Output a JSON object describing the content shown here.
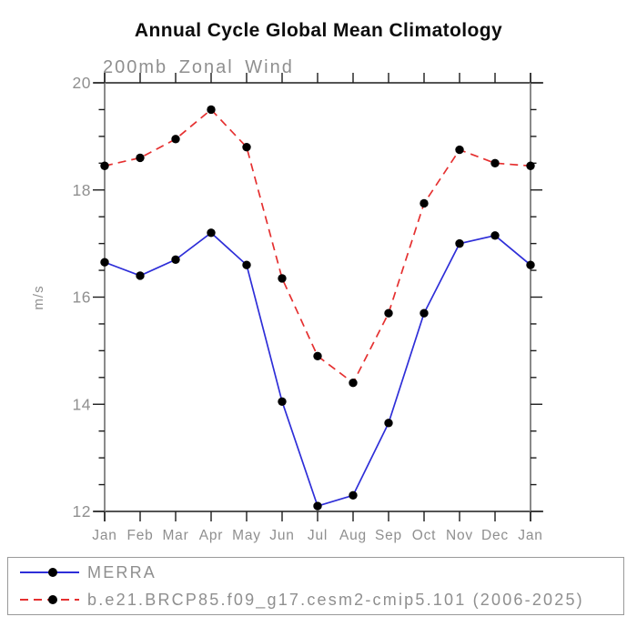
{
  "title": "Annual Cycle Global Mean Climatology",
  "chart_data": {
    "type": "line",
    "title": "Annual Cycle Global Mean Climatology",
    "subtitle": "200mb Zonal Wind",
    "ylabel": "m/s",
    "xlabel": "",
    "categories": [
      "Jan",
      "Feb",
      "Mar",
      "Apr",
      "May",
      "Jun",
      "Jul",
      "Aug",
      "Sep",
      "Oct",
      "Nov",
      "Dec",
      "Jan"
    ],
    "series": [
      {
        "name": "MERRA",
        "color": "#2e2ed8",
        "line_style": "solid",
        "marker": "filled-circle",
        "values": [
          16.65,
          16.4,
          16.7,
          17.2,
          16.6,
          14.05,
          12.1,
          12.3,
          13.65,
          15.7,
          17.0,
          17.15,
          16.6
        ]
      },
      {
        "name": "b.e21.BRCP85.f09_g17.cesm2-cmip5.101 (2006-2025)",
        "color": "#e53030",
        "line_style": "dashed",
        "marker": "filled-circle",
        "values": [
          18.45,
          18.6,
          18.95,
          19.5,
          18.8,
          16.35,
          14.9,
          14.4,
          15.7,
          17.75,
          18.75,
          18.5,
          18.45
        ]
      }
    ],
    "ylim": [
      12,
      20
    ],
    "yticks": [
      12,
      14,
      16,
      18,
      20
    ],
    "y_minor_interval": 0.5,
    "grid": false,
    "legend_position": "bottom"
  },
  "colors": {
    "merra_line": "#2e2ed8",
    "model_line": "#e53030",
    "marker": "#000000",
    "axis_horizontal": "#1c1c1c",
    "axis_vertical": "#8a8a8a",
    "tick": "#1c1c1c",
    "gray_label": "#8f8f8f",
    "legend_border": "#999999",
    "title_text": "#0d0d0d"
  }
}
